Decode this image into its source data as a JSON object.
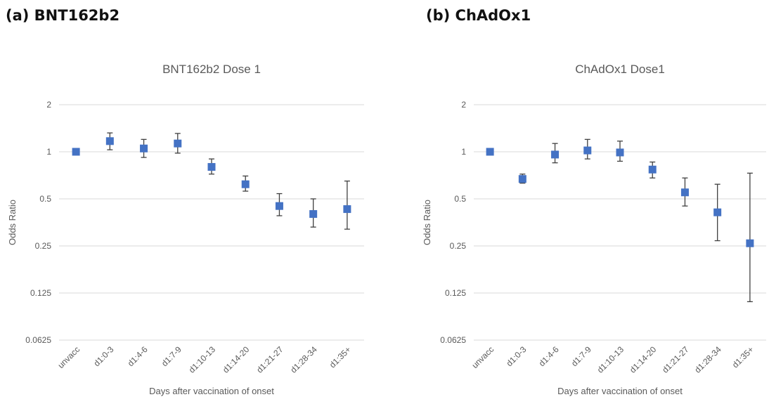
{
  "panels": [
    {
      "label": "(a) BNT162b2"
    },
    {
      "label": "(b) ChAdOx1"
    }
  ],
  "colors": {
    "marker": "#4472c4",
    "errorbar": "#404040",
    "grid": "#d9d9d9",
    "text": "#595959"
  },
  "chart_data": [
    {
      "type": "scatter",
      "title": "BNT162b2 Dose 1",
      "xlabel": "Days after vaccination of onset",
      "ylabel": "Odds Ratio",
      "yscale": "log2",
      "ylim": [
        0.0625,
        2
      ],
      "yticks": [
        "0.0625",
        "0.125",
        "0.25",
        "0.5",
        "1",
        "2"
      ],
      "grid": true,
      "legend": "none",
      "categories": [
        "unvacc",
        "d1:0-3",
        "d1:4-6",
        "d1:7-9",
        "d1:10-13",
        "d1:14-20",
        "d1:21-27",
        "d1:28-34",
        "d1:35+"
      ],
      "values": [
        1.0,
        1.17,
        1.05,
        1.13,
        0.8,
        0.62,
        0.45,
        0.4,
        0.43
      ],
      "lower": [
        1.0,
        1.03,
        0.92,
        0.98,
        0.72,
        0.56,
        0.39,
        0.33,
        0.32
      ],
      "upper": [
        1.0,
        1.32,
        1.2,
        1.31,
        0.9,
        0.7,
        0.54,
        0.5,
        0.65
      ]
    },
    {
      "type": "scatter",
      "title": "ChAdOx1 Dose1",
      "xlabel": "Days after vaccination of onset",
      "ylabel": "Odds Ratio",
      "yscale": "log2",
      "ylim": [
        0.0625,
        2
      ],
      "yticks": [
        "0.0625",
        "0.125",
        "0.25",
        "0.5",
        "1",
        "2"
      ],
      "grid": true,
      "legend": "none",
      "categories": [
        "unvacc",
        "d1:0-3",
        "d1:4-6",
        "d1:7-9",
        "d1:10-13",
        "d1:14-20",
        "d1:21-27",
        "d1:28-34",
        "d1:35+"
      ],
      "values": [
        1.0,
        0.67,
        0.96,
        1.02,
        0.99,
        0.77,
        0.55,
        0.41,
        0.26
      ],
      "lower": [
        1.0,
        0.63,
        0.85,
        0.9,
        0.87,
        0.68,
        0.45,
        0.27,
        0.11
      ],
      "upper": [
        1.0,
        0.72,
        1.13,
        1.2,
        1.17,
        0.86,
        0.68,
        0.62,
        0.73
      ]
    }
  ]
}
